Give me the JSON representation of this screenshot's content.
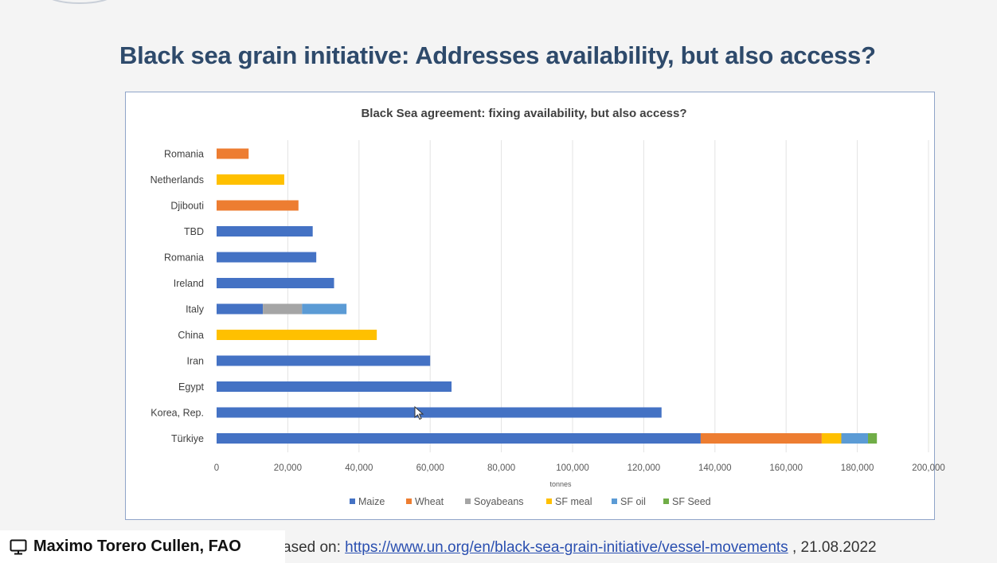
{
  "slide": {
    "title": "Black sea grain initiative: Addresses availability, but also access?",
    "source_prefix": "ased on: ",
    "source_link": "https://www.un.org/en/black-sea-grain-initiative/vessel-movements",
    "source_suffix": " , 21.08.2022"
  },
  "presenter": {
    "name": "Maximo Torero Cullen, FAO",
    "icon": "monitor-icon"
  },
  "colors": {
    "title": "#2e4a6b",
    "Maize": "#4472c4",
    "Wheat": "#ed7d31",
    "Soyabeans": "#a5a5a5",
    "SF meal": "#ffc000",
    "SF oil": "#5b9bd5",
    "SF Seed": "#70ad47"
  },
  "chart_data": {
    "type": "bar",
    "orientation": "horizontal",
    "stacked": true,
    "title": "Black Sea agreement: fixing availability, but also access?",
    "xlabel": "tonnes",
    "xlim": [
      0,
      200000
    ],
    "xticks": [
      0,
      20000,
      40000,
      60000,
      80000,
      100000,
      120000,
      140000,
      160000,
      180000,
      200000
    ],
    "xtick_labels": [
      "0",
      "20,000",
      "40,000",
      "60,000",
      "80,000",
      "100,000",
      "120,000",
      "140,000",
      "160,000",
      "180,000",
      "200,000"
    ],
    "grid": "vertical",
    "legend_position": "bottom",
    "categories": [
      "Romania",
      "Netherlands",
      "Djibouti",
      "TBD",
      "Romania",
      "Ireland",
      "Italy",
      "China",
      "Iran",
      "Egypt",
      "Korea, Rep.",
      "Türkiye"
    ],
    "series": [
      {
        "name": "Maize",
        "values": [
          0,
          0,
          0,
          27000,
          28000,
          33000,
          13000,
          0,
          60000,
          66000,
          125000,
          136000
        ]
      },
      {
        "name": "Wheat",
        "values": [
          9000,
          0,
          23000,
          0,
          0,
          0,
          0,
          0,
          0,
          0,
          0,
          34000
        ]
      },
      {
        "name": "Soyabeans",
        "values": [
          0,
          0,
          0,
          0,
          0,
          0,
          11000,
          0,
          0,
          0,
          0,
          0
        ]
      },
      {
        "name": "SF meal",
        "values": [
          0,
          19000,
          0,
          0,
          0,
          0,
          0,
          45000,
          0,
          0,
          0,
          5500
        ]
      },
      {
        "name": "SF oil",
        "values": [
          0,
          0,
          0,
          0,
          0,
          0,
          12500,
          0,
          0,
          0,
          0,
          7500
        ]
      },
      {
        "name": "SF Seed",
        "values": [
          0,
          0,
          0,
          0,
          0,
          0,
          0,
          0,
          0,
          0,
          0,
          2500
        ]
      }
    ]
  }
}
